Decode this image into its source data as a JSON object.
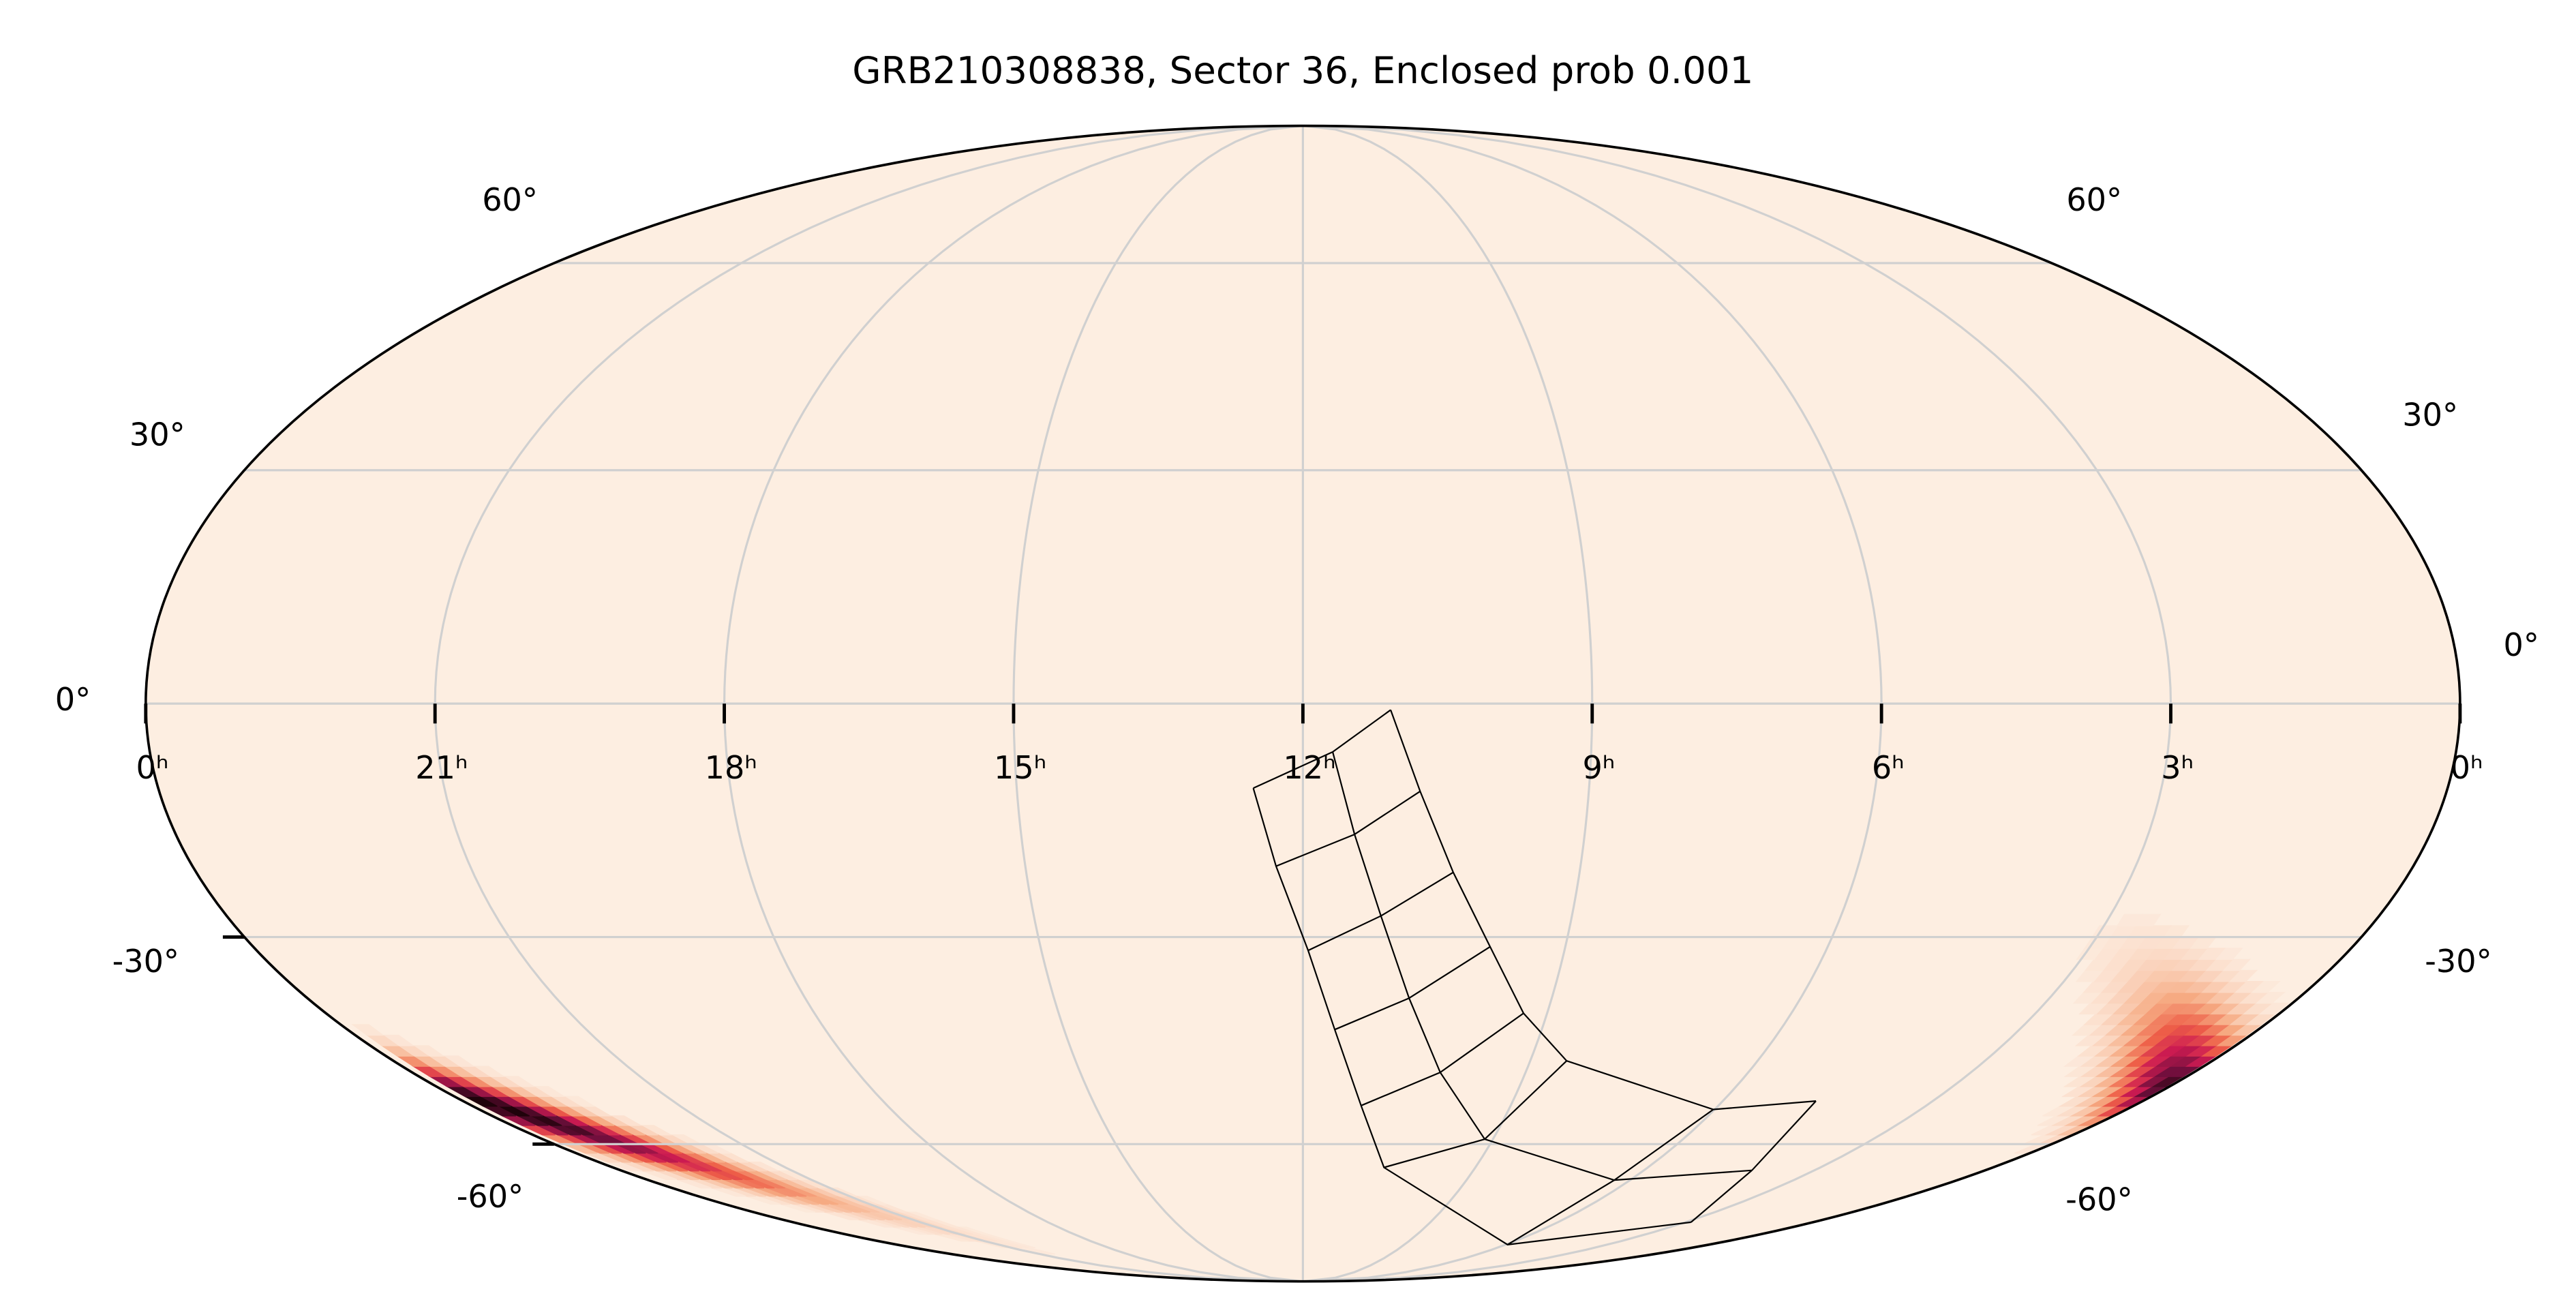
{
  "chart_data": {
    "type": "skymap",
    "title": "GRB210308838, Sector 36, Enclosed prob 0.001",
    "xlim": [
      24,
      0
    ],
    "ylim": [
      -90,
      90
    ],
    "xticks": [
      {
        "value": 24,
        "label": "0ʰ"
      },
      {
        "value": 21,
        "label": "21ʰ"
      },
      {
        "value": 18,
        "label": "18ʰ"
      },
      {
        "value": 15,
        "label": "15ʰ"
      },
      {
        "value": 12,
        "label": "12ʰ"
      },
      {
        "value": 9,
        "label": "9ʰ"
      },
      {
        "value": 6,
        "label": "6ʰ"
      },
      {
        "value": 3,
        "label": "3ʰ"
      },
      {
        "value": 0,
        "label": "0ʰ"
      }
    ],
    "yticks": [
      {
        "value": -60,
        "label": "-60°"
      },
      {
        "value": -30,
        "label": "-30°"
      },
      {
        "value": 0,
        "label": "0°"
      },
      {
        "value": 30,
        "label": "30°"
      },
      {
        "value": 60,
        "label": "60°"
      }
    ],
    "grid": true,
    "background": "#fdeee1",
    "heatmap": {
      "peak": {
        "x": 23.65,
        "y": -54
      },
      "spread": {
        "x": 1.2,
        "y": 4
      },
      "slope": 7.2
    },
    "footprint": [
      {
        "x": [
          12.52,
          12.29,
          11.94,
          11.6,
          11.16,
          10.59,
          5.95,
          2.87
        ],
        "y": [
          -10.7,
          -20.7,
          -31.8,
          -42.7,
          -53.9,
          -63.9,
          -78.8,
          -74.0
        ]
      },
      {
        "x": [
          11.69,
          11.45,
          11.13,
          10.72,
          10.15,
          9.13,
          6.29,
          4.1
        ],
        "y": [
          -6.1,
          -16.6,
          -27.2,
          -38.3,
          -48.9,
          -59.2,
          -66.1,
          -64.4
        ]
      },
      {
        "x": [
          11.09,
          10.77,
          10.37,
          9.86,
          9.29,
          8.52,
          6.02,
          4.67
        ],
        "y": [
          -0.8,
          -11.1,
          -21.5,
          -31.3,
          -40.4,
          -47.2,
          -54.5,
          -53.2
        ]
      }
    ],
    "footprint_color": "#000000"
  }
}
